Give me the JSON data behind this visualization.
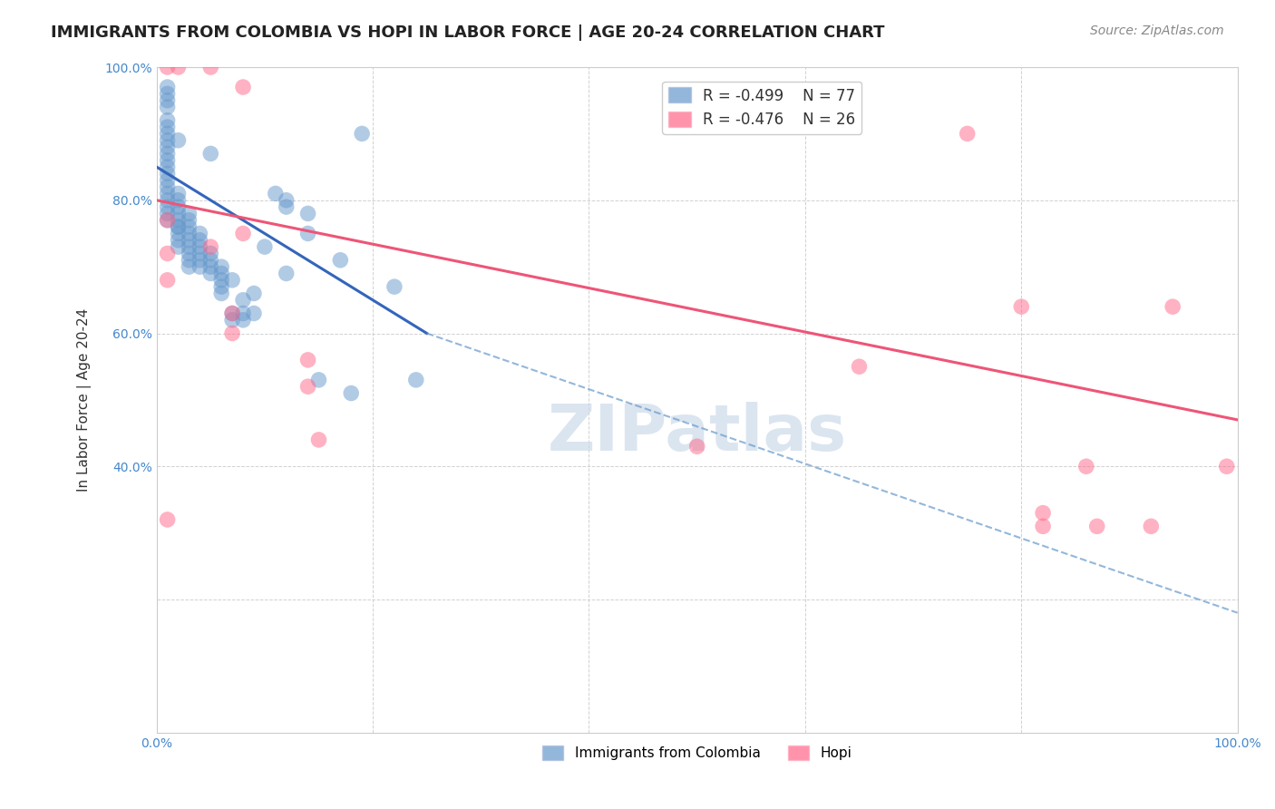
{
  "title": "IMMIGRANTS FROM COLOMBIA VS HOPI IN LABOR FORCE | AGE 20-24 CORRELATION CHART",
  "source": "Source: ZipAtlas.com",
  "ylabel": "In Labor Force | Age 20-24",
  "xlim": [
    0,
    1.0
  ],
  "ylim": [
    0,
    1.0
  ],
  "xticks": [
    0.0,
    0.2,
    0.4,
    0.6,
    0.8,
    1.0
  ],
  "xticklabels": [
    "0.0%",
    "",
    "",
    "",
    "",
    "100.0%"
  ],
  "yticks": [
    0.0,
    0.2,
    0.4,
    0.6,
    0.8,
    1.0
  ],
  "yticklabels": [
    "",
    "",
    "40.0%",
    "60.0%",
    "80.0%",
    "100.0%"
  ],
  "colombia_R": "-0.499",
  "colombia_N": "77",
  "hopi_R": "-0.476",
  "hopi_N": "26",
  "colombia_color": "#6699cc",
  "hopi_color": "#ff6688",
  "colombia_scatter": [
    [
      0.01,
      0.97
    ],
    [
      0.01,
      0.96
    ],
    [
      0.01,
      0.95
    ],
    [
      0.01,
      0.94
    ],
    [
      0.01,
      0.92
    ],
    [
      0.01,
      0.91
    ],
    [
      0.01,
      0.9
    ],
    [
      0.01,
      0.89
    ],
    [
      0.01,
      0.88
    ],
    [
      0.01,
      0.87
    ],
    [
      0.01,
      0.86
    ],
    [
      0.01,
      0.85
    ],
    [
      0.01,
      0.84
    ],
    [
      0.01,
      0.83
    ],
    [
      0.01,
      0.82
    ],
    [
      0.01,
      0.81
    ],
    [
      0.01,
      0.8
    ],
    [
      0.01,
      0.79
    ],
    [
      0.01,
      0.78
    ],
    [
      0.01,
      0.77
    ],
    [
      0.02,
      0.76
    ],
    [
      0.02,
      0.81
    ],
    [
      0.02,
      0.8
    ],
    [
      0.02,
      0.79
    ],
    [
      0.02,
      0.78
    ],
    [
      0.02,
      0.77
    ],
    [
      0.02,
      0.76
    ],
    [
      0.02,
      0.75
    ],
    [
      0.02,
      0.74
    ],
    [
      0.02,
      0.73
    ],
    [
      0.03,
      0.78
    ],
    [
      0.03,
      0.77
    ],
    [
      0.03,
      0.76
    ],
    [
      0.03,
      0.75
    ],
    [
      0.03,
      0.74
    ],
    [
      0.03,
      0.73
    ],
    [
      0.03,
      0.72
    ],
    [
      0.03,
      0.71
    ],
    [
      0.03,
      0.7
    ],
    [
      0.04,
      0.75
    ],
    [
      0.04,
      0.74
    ],
    [
      0.04,
      0.73
    ],
    [
      0.04,
      0.72
    ],
    [
      0.04,
      0.71
    ],
    [
      0.04,
      0.7
    ],
    [
      0.05,
      0.72
    ],
    [
      0.05,
      0.71
    ],
    [
      0.05,
      0.7
    ],
    [
      0.05,
      0.69
    ],
    [
      0.06,
      0.7
    ],
    [
      0.06,
      0.69
    ],
    [
      0.06,
      0.68
    ],
    [
      0.06,
      0.67
    ],
    [
      0.06,
      0.66
    ],
    [
      0.07,
      0.68
    ],
    [
      0.07,
      0.63
    ],
    [
      0.07,
      0.62
    ],
    [
      0.08,
      0.65
    ],
    [
      0.08,
      0.63
    ],
    [
      0.08,
      0.62
    ],
    [
      0.09,
      0.66
    ],
    [
      0.09,
      0.63
    ],
    [
      0.1,
      0.73
    ],
    [
      0.11,
      0.81
    ],
    [
      0.12,
      0.8
    ],
    [
      0.12,
      0.79
    ],
    [
      0.12,
      0.69
    ],
    [
      0.14,
      0.78
    ],
    [
      0.14,
      0.75
    ],
    [
      0.15,
      0.53
    ],
    [
      0.17,
      0.71
    ],
    [
      0.18,
      0.51
    ],
    [
      0.19,
      0.9
    ],
    [
      0.22,
      0.67
    ],
    [
      0.24,
      0.53
    ],
    [
      0.02,
      0.89
    ],
    [
      0.05,
      0.87
    ]
  ],
  "hopi_scatter": [
    [
      0.01,
      1.0
    ],
    [
      0.02,
      1.0
    ],
    [
      0.05,
      1.0
    ],
    [
      0.08,
      0.97
    ],
    [
      0.01,
      0.77
    ],
    [
      0.01,
      0.72
    ],
    [
      0.01,
      0.68
    ],
    [
      0.05,
      0.73
    ],
    [
      0.07,
      0.63
    ],
    [
      0.07,
      0.6
    ],
    [
      0.08,
      0.75
    ],
    [
      0.14,
      0.56
    ],
    [
      0.14,
      0.52
    ],
    [
      0.01,
      0.32
    ],
    [
      0.15,
      0.44
    ],
    [
      0.5,
      0.43
    ],
    [
      0.65,
      0.55
    ],
    [
      0.75,
      0.9
    ],
    [
      0.8,
      0.64
    ],
    [
      0.82,
      0.33
    ],
    [
      0.82,
      0.31
    ],
    [
      0.86,
      0.4
    ],
    [
      0.87,
      0.31
    ],
    [
      0.92,
      0.31
    ],
    [
      0.94,
      0.64
    ],
    [
      0.99,
      0.4
    ]
  ],
  "colombia_trendline_x": [
    0.0,
    0.25
  ],
  "colombia_trendline_y": [
    0.85,
    0.6
  ],
  "hopi_trendline_x": [
    0.0,
    1.0
  ],
  "hopi_trendline_y": [
    0.8,
    0.47
  ],
  "dashed_trendline_x": [
    0.25,
    1.0
  ],
  "dashed_trendline_y": [
    0.6,
    0.18
  ],
  "watermark": "ZIPatlas",
  "watermark_color": "#c8d8e8",
  "background_color": "#ffffff",
  "grid_color": "#cccccc",
  "tick_color": "#4488cc",
  "title_fontsize": 13,
  "label_fontsize": 11,
  "tick_fontsize": 10,
  "source_fontsize": 10
}
